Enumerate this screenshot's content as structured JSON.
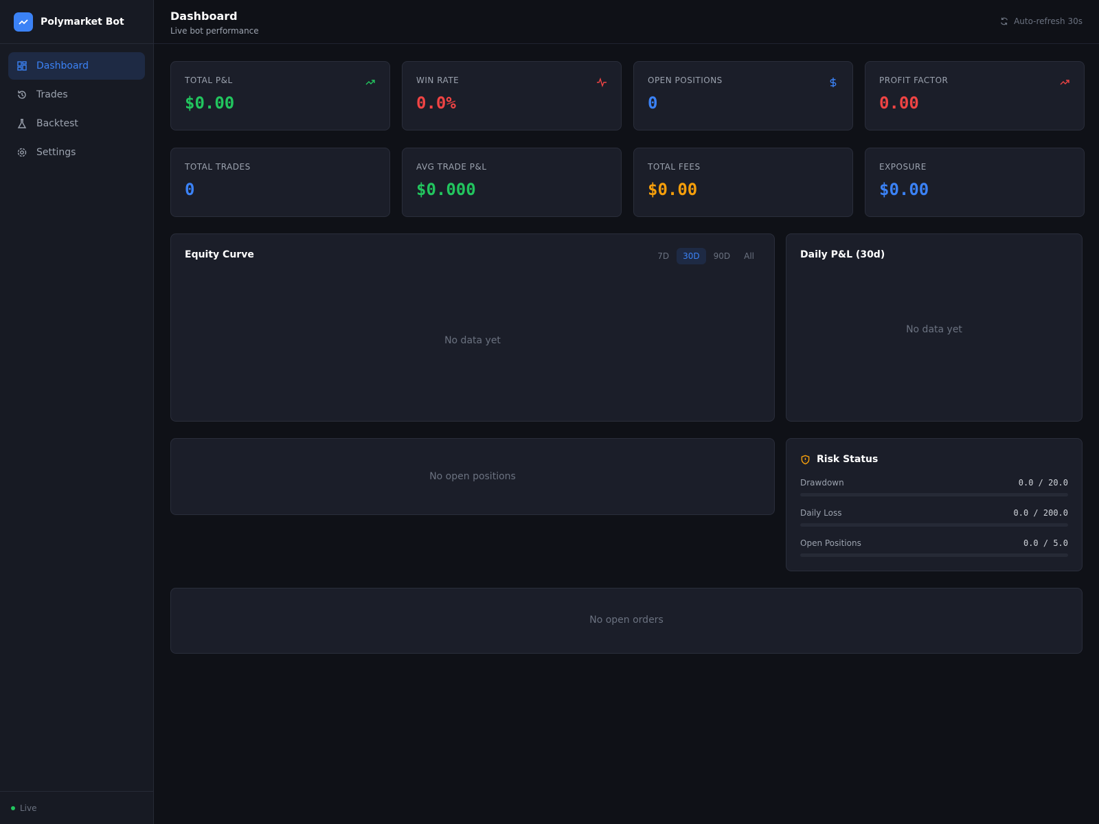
{
  "sidebar": {
    "brand": "Polymarket Bot",
    "nav": [
      "Dashboard",
      "Trades",
      "Backtest",
      "Settings"
    ],
    "status": "Live"
  },
  "header": {
    "title": "Dashboard",
    "subtitle": "Live bot performance",
    "refresh": "Auto-refresh 30s"
  },
  "stats": [
    {
      "label": "TOTAL P&L",
      "value": "$0.00"
    },
    {
      "label": "WIN RATE",
      "value": "0.0%"
    },
    {
      "label": "OPEN POSITIONS",
      "value": "0"
    },
    {
      "label": "PROFIT FACTOR",
      "value": "0.00"
    },
    {
      "label": "TOTAL TRADES",
      "value": "0"
    },
    {
      "label": "AVG TRADE P&L",
      "value": "$0.000"
    },
    {
      "label": "TOTAL FEES",
      "value": "$0.00"
    },
    {
      "label": "EXPOSURE",
      "value": "$0.00"
    }
  ],
  "equity": {
    "title": "Equity Curve",
    "ranges": [
      "7D",
      "30D",
      "90D",
      "All"
    ],
    "empty": "No data yet"
  },
  "daily": {
    "title": "Daily P&L (30d)",
    "empty": "No data yet"
  },
  "positions": {
    "empty": "No open positions"
  },
  "risk": {
    "title": "Risk Status",
    "rows": [
      {
        "label": "Drawdown",
        "value": "0.0 / 20.0"
      },
      {
        "label": "Daily Loss",
        "value": "0.0 / 200.0"
      },
      {
        "label": "Open Positions",
        "value": "0.0 / 5.0"
      }
    ]
  },
  "orders": {
    "empty": "No open orders"
  }
}
